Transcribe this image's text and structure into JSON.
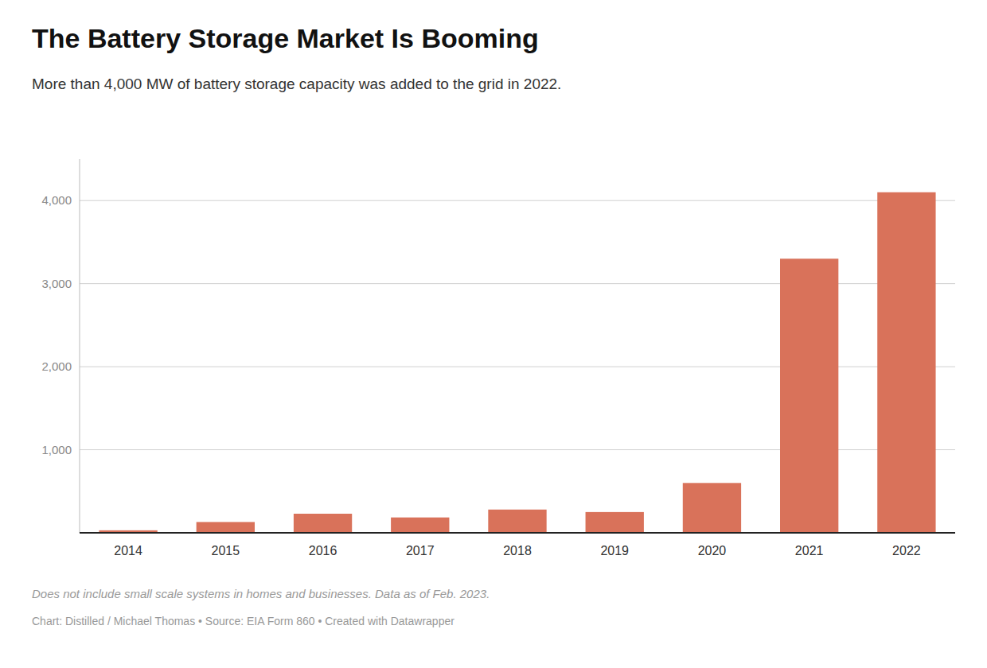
{
  "chart_data": {
    "type": "bar",
    "title": "The Battery Storage Market Is Booming",
    "subtitle": "More than 4,000 MW of battery storage capacity was added to the grid in 2022.",
    "footnotes": [
      "Does not include small scale systems in homes and businesses. Data as of Feb. 2023.",
      "Chart: Distilled / Michael Thomas • Source: EIA Form 860 • Created with Datawrapper"
    ],
    "categories": [
      "2014",
      "2015",
      "2016",
      "2017",
      "2018",
      "2019",
      "2020",
      "2021",
      "2022"
    ],
    "values": [
      30,
      130,
      230,
      185,
      280,
      250,
      600,
      3300,
      4100
    ],
    "color": "#d9725a",
    "ylim": [
      0,
      4500
    ],
    "yticks": [
      {
        "value": 1000,
        "label": "1,000"
      },
      {
        "value": 2000,
        "label": "2,000"
      },
      {
        "value": 3000,
        "label": "3,000"
      },
      {
        "value": 4000,
        "label": "4,000"
      }
    ],
    "grid": true
  }
}
